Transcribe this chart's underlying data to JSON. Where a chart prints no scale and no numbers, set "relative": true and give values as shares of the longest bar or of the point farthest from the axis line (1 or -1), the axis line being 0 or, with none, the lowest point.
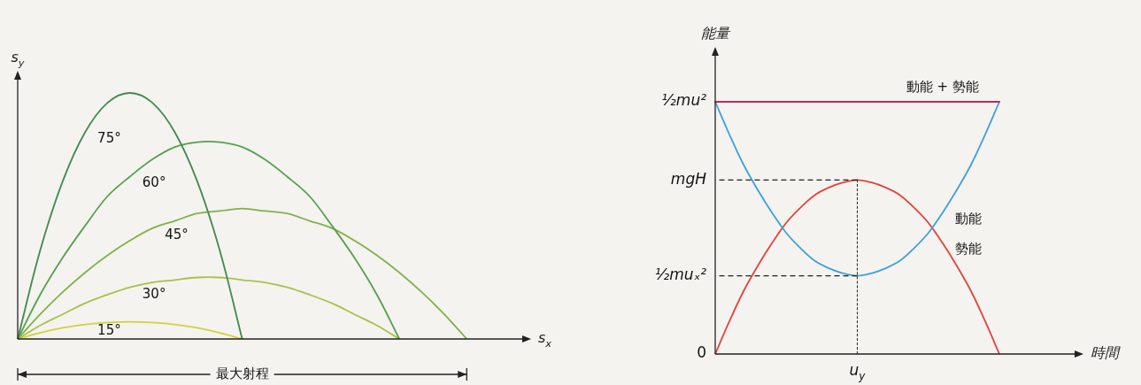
{
  "chart_data": [
    {
      "type": "line",
      "relative": true,
      "xlabel": "s$_{x}$",
      "ylabel": "s$_{y}$",
      "grid": false,
      "legend": false,
      "marker": "none",
      "line_style": "solid",
      "categories": [
        null,
        null,
        null,
        null,
        null,
        null,
        null,
        null,
        null,
        null,
        null,
        null,
        null,
        null,
        null,
        null,
        null,
        null,
        null,
        null,
        null,
        null,
        null
      ],
      "annotations": [
        "最大射程"
      ],
      "series": [
        {
          "name": "75°",
          "color": "#3f8a4c",
          "values": [
            0,
            0.36,
            0.64,
            0.84,
            0.96,
            1,
            0.96,
            0.84,
            0.64,
            0.36,
            0,
            null,
            null,
            null,
            null,
            null,
            null,
            null,
            null,
            null,
            null,
            null,
            null
          ]
        },
        {
          "name": "60°",
          "color": "#55a04e",
          "values": [
            0,
            0.18,
            0.33,
            0.46,
            0.58,
            0.66,
            0.73,
            0.78,
            0.8,
            0.8,
            0.78,
            0.73,
            0.66,
            0.58,
            0.46,
            0.33,
            0.18,
            0,
            null,
            null,
            null,
            null,
            null
          ]
        },
        {
          "name": "45°",
          "color": "#7fb24a",
          "values": [
            0,
            0.1,
            0.19,
            0.27,
            0.34,
            0.4,
            0.45,
            0.48,
            0.51,
            0.52,
            0.53,
            0.52,
            0.51,
            0.48,
            0.45,
            0.4,
            0.34,
            0.27,
            0.19,
            0.1,
            0,
            null,
            null
          ]
        },
        {
          "name": "30°",
          "color": "#a8c24a",
          "values": [
            0,
            0.055,
            0.1,
            0.145,
            0.18,
            0.21,
            0.23,
            0.24,
            0.25,
            0.25,
            0.24,
            0.23,
            0.21,
            0.18,
            0.145,
            0.1,
            0.055,
            0,
            null,
            null,
            null,
            null,
            null
          ]
        },
        {
          "name": "15°",
          "color": "#d2d23c",
          "values": [
            0,
            0.025,
            0.045,
            0.059,
            0.067,
            0.07,
            0.067,
            0.059,
            0.045,
            0.025,
            0,
            null,
            null,
            null,
            null,
            null,
            null,
            null,
            null,
            null,
            null,
            null,
            null
          ]
        }
      ]
    },
    {
      "type": "line",
      "relative": true,
      "xlabel": "時間",
      "ylabel": "能量",
      "grid": false,
      "legend": false,
      "marker": "none",
      "line_style": "solid",
      "annotations": [
        "0",
        "½mu²",
        "u$_{y}$"
      ],
      "ref_lines": [
        {
          "axis": "y",
          "value": 0.69,
          "label": "mgH",
          "color": "#222222",
          "line_style": "dashed"
        },
        {
          "axis": "y",
          "value": 0.31,
          "label": "½muₓ²",
          "color": "#222222",
          "line_style": "dashed"
        }
      ],
      "categories": [
        null,
        null,
        null,
        null,
        null,
        null,
        null,
        null,
        null,
        null,
        null,
        null,
        null,
        null,
        null,
        null,
        null,
        null,
        null,
        null,
        null
      ],
      "series": [
        {
          "name": "動能 + 勢能",
          "color": "#b0305e",
          "values": [
            1,
            1,
            1,
            1,
            1,
            1,
            1,
            1,
            1,
            1,
            1,
            1,
            1,
            1,
            1,
            1,
            1,
            1,
            1,
            1,
            1
          ]
        },
        {
          "name": "動能",
          "color": "#3fa0d8",
          "values": [
            1,
            0.87,
            0.75,
            0.65,
            0.56,
            0.48,
            0.42,
            0.37,
            0.34,
            0.32,
            0.31,
            0.32,
            0.34,
            0.37,
            0.42,
            0.48,
            0.56,
            0.65,
            0.75,
            0.87,
            1
          ]
        },
        {
          "name": "勢能",
          "color": "#e0443c",
          "values": [
            0,
            0.13,
            0.25,
            0.35,
            0.44,
            0.52,
            0.58,
            0.63,
            0.66,
            0.68,
            0.69,
            0.68,
            0.66,
            0.63,
            0.58,
            0.52,
            0.44,
            0.35,
            0.25,
            0.13,
            0
          ]
        }
      ]
    }
  ]
}
